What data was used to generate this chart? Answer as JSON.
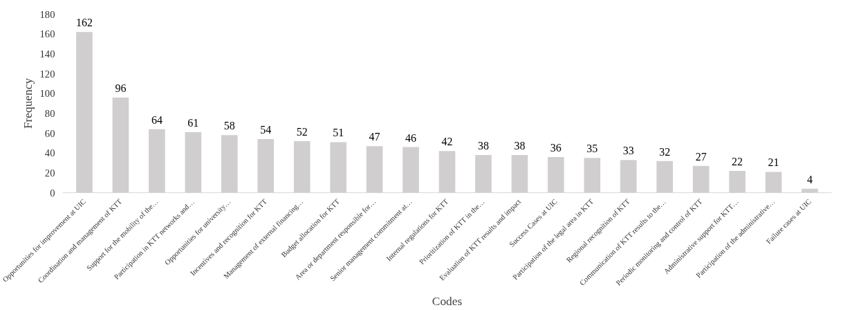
{
  "chart_data": {
    "type": "bar",
    "xlabel": "Codes",
    "ylabel": "Frequency",
    "categories": [
      "Opportunities for improvement at UIC",
      "Coordination and management of KTT",
      "Support for the mobility of the…",
      "Participation in KTT networks and…",
      "Opportunities for university…",
      "Incentives and recognition for KTT",
      "Management of external financing…",
      "Budget allocation for KTT",
      "Area or department responsible for…",
      "Senior management commitment at…",
      "Internal regulations for KTT",
      "Prioritization of KTT in the…",
      "Evaluation of KTT results and impact",
      "Success Cases at UIC",
      "Participation of the legal area in KTT",
      "Regional recognition of KTT",
      "Communication of KTT results to the…",
      "Periodic monitoring and control of KTT",
      "Administrative support for KTT…",
      "Participation of the administrative…",
      "Failure cases at UIC"
    ],
    "values": [
      162,
      96,
      64,
      61,
      58,
      54,
      52,
      51,
      47,
      46,
      42,
      38,
      38,
      36,
      35,
      33,
      32,
      27,
      22,
      21,
      4
    ],
    "color": "#d0cece",
    "data_labels": true,
    "ylim": [
      0,
      180
    ],
    "yticks": [
      0,
      20,
      40,
      60,
      80,
      100,
      120,
      140,
      160,
      180
    ],
    "grid": false
  }
}
